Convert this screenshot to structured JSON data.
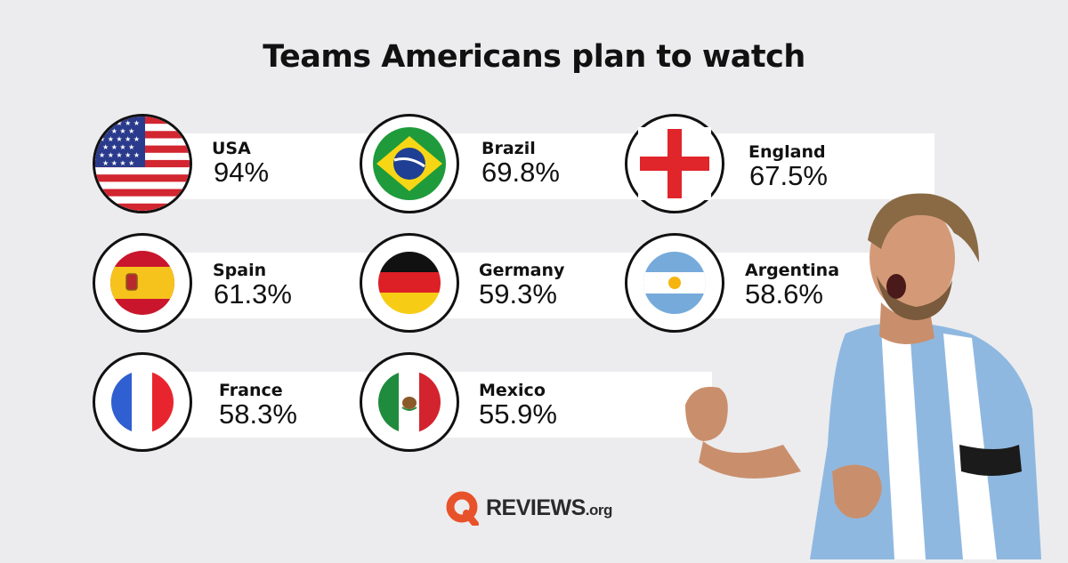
{
  "chart_data": {
    "type": "table",
    "title": "Teams Americans plan to watch",
    "categories": [
      "USA",
      "Brazil",
      "England",
      "Spain",
      "Germany",
      "Argentina",
      "France",
      "Mexico"
    ],
    "values": [
      94,
      69.8,
      67.5,
      61.3,
      59.3,
      58.6,
      58.3,
      55.9
    ],
    "value_labels": [
      "94%",
      "69.8%",
      "67.5%",
      "61.3%",
      "59.3%",
      "58.6%",
      "58.3%",
      "55.9%"
    ],
    "unit": "%"
  },
  "items": [
    {
      "country": "USA",
      "pct": "94%",
      "flag": "usa-flag-icon"
    },
    {
      "country": "Brazil",
      "pct": "69.8%",
      "flag": "brazil-flag-icon"
    },
    {
      "country": "England",
      "pct": "67.5%",
      "flag": "england-flag-icon"
    },
    {
      "country": "Spain",
      "pct": "61.3%",
      "flag": "spain-flag-icon"
    },
    {
      "country": "Germany",
      "pct": "59.3%",
      "flag": "germany-flag-icon"
    },
    {
      "country": "Argentina",
      "pct": "58.6%",
      "flag": "argentina-flag-icon"
    },
    {
      "country": "France",
      "pct": "58.3%",
      "flag": "france-flag-icon"
    },
    {
      "country": "Mexico",
      "pct": "55.9%",
      "flag": "mexico-flag-icon"
    }
  ],
  "logo": {
    "brand": "REVIEWS",
    "suffix": ".org",
    "icon": "reviews-logo-icon",
    "color": "#e8522a"
  },
  "colors": {
    "background": "#ececee",
    "band": "#ffffff",
    "text": "#111111"
  }
}
